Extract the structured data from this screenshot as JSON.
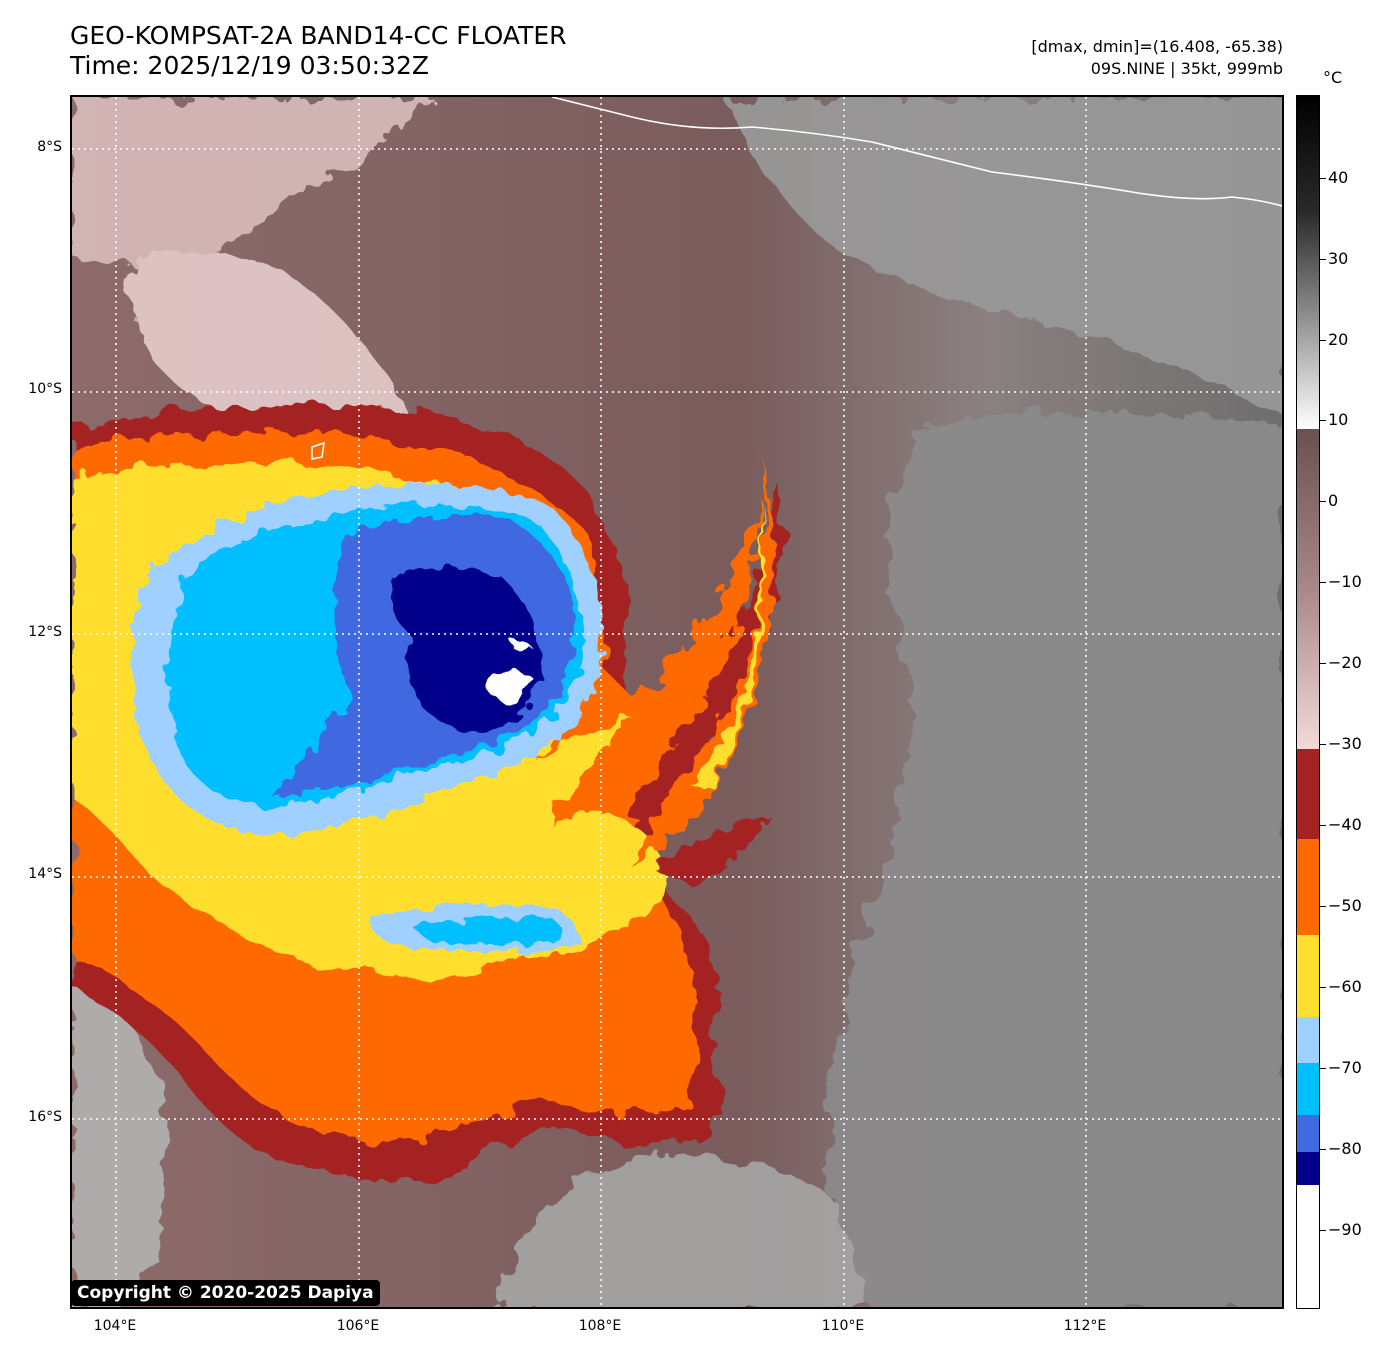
{
  "header": {
    "title": "GEO-KOMPSAT-2A BAND14-CC FLOATER",
    "time": "Time: 2025/12/19 03:50:32Z",
    "range_info": "[dmax, dmin]=(16.408, -65.38)",
    "storm_info": "09S.NINE | 35kt, 999mb"
  },
  "map": {
    "latitudes": [
      "8°S",
      "10°S",
      "12°S",
      "14°S",
      "16°S"
    ],
    "longitudes": [
      "104°E",
      "106°E",
      "108°E",
      "110°E",
      "112°E"
    ],
    "copyright": "Copyright © 2020-2025 Dapiya"
  },
  "colorbar": {
    "unit": "°C",
    "ticks": [
      "40",
      "30",
      "20",
      "10",
      "0",
      "−10",
      "−20",
      "−30",
      "−40",
      "−50",
      "−60",
      "−70",
      "−80",
      "−90"
    ]
  },
  "colors": {
    "white": "#ffffff",
    "dark_blue": "#00008b",
    "royal_blue": "#4169e1",
    "deep_sky_blue": "#00bfff",
    "light_blue": "#9fd0ff",
    "gold": "#ffde2e",
    "orange": "#ff6a00",
    "dark_red": "#a52222",
    "pink": "#e8cdcd",
    "mauve": "#7a5c5c",
    "gray": "#808080"
  }
}
